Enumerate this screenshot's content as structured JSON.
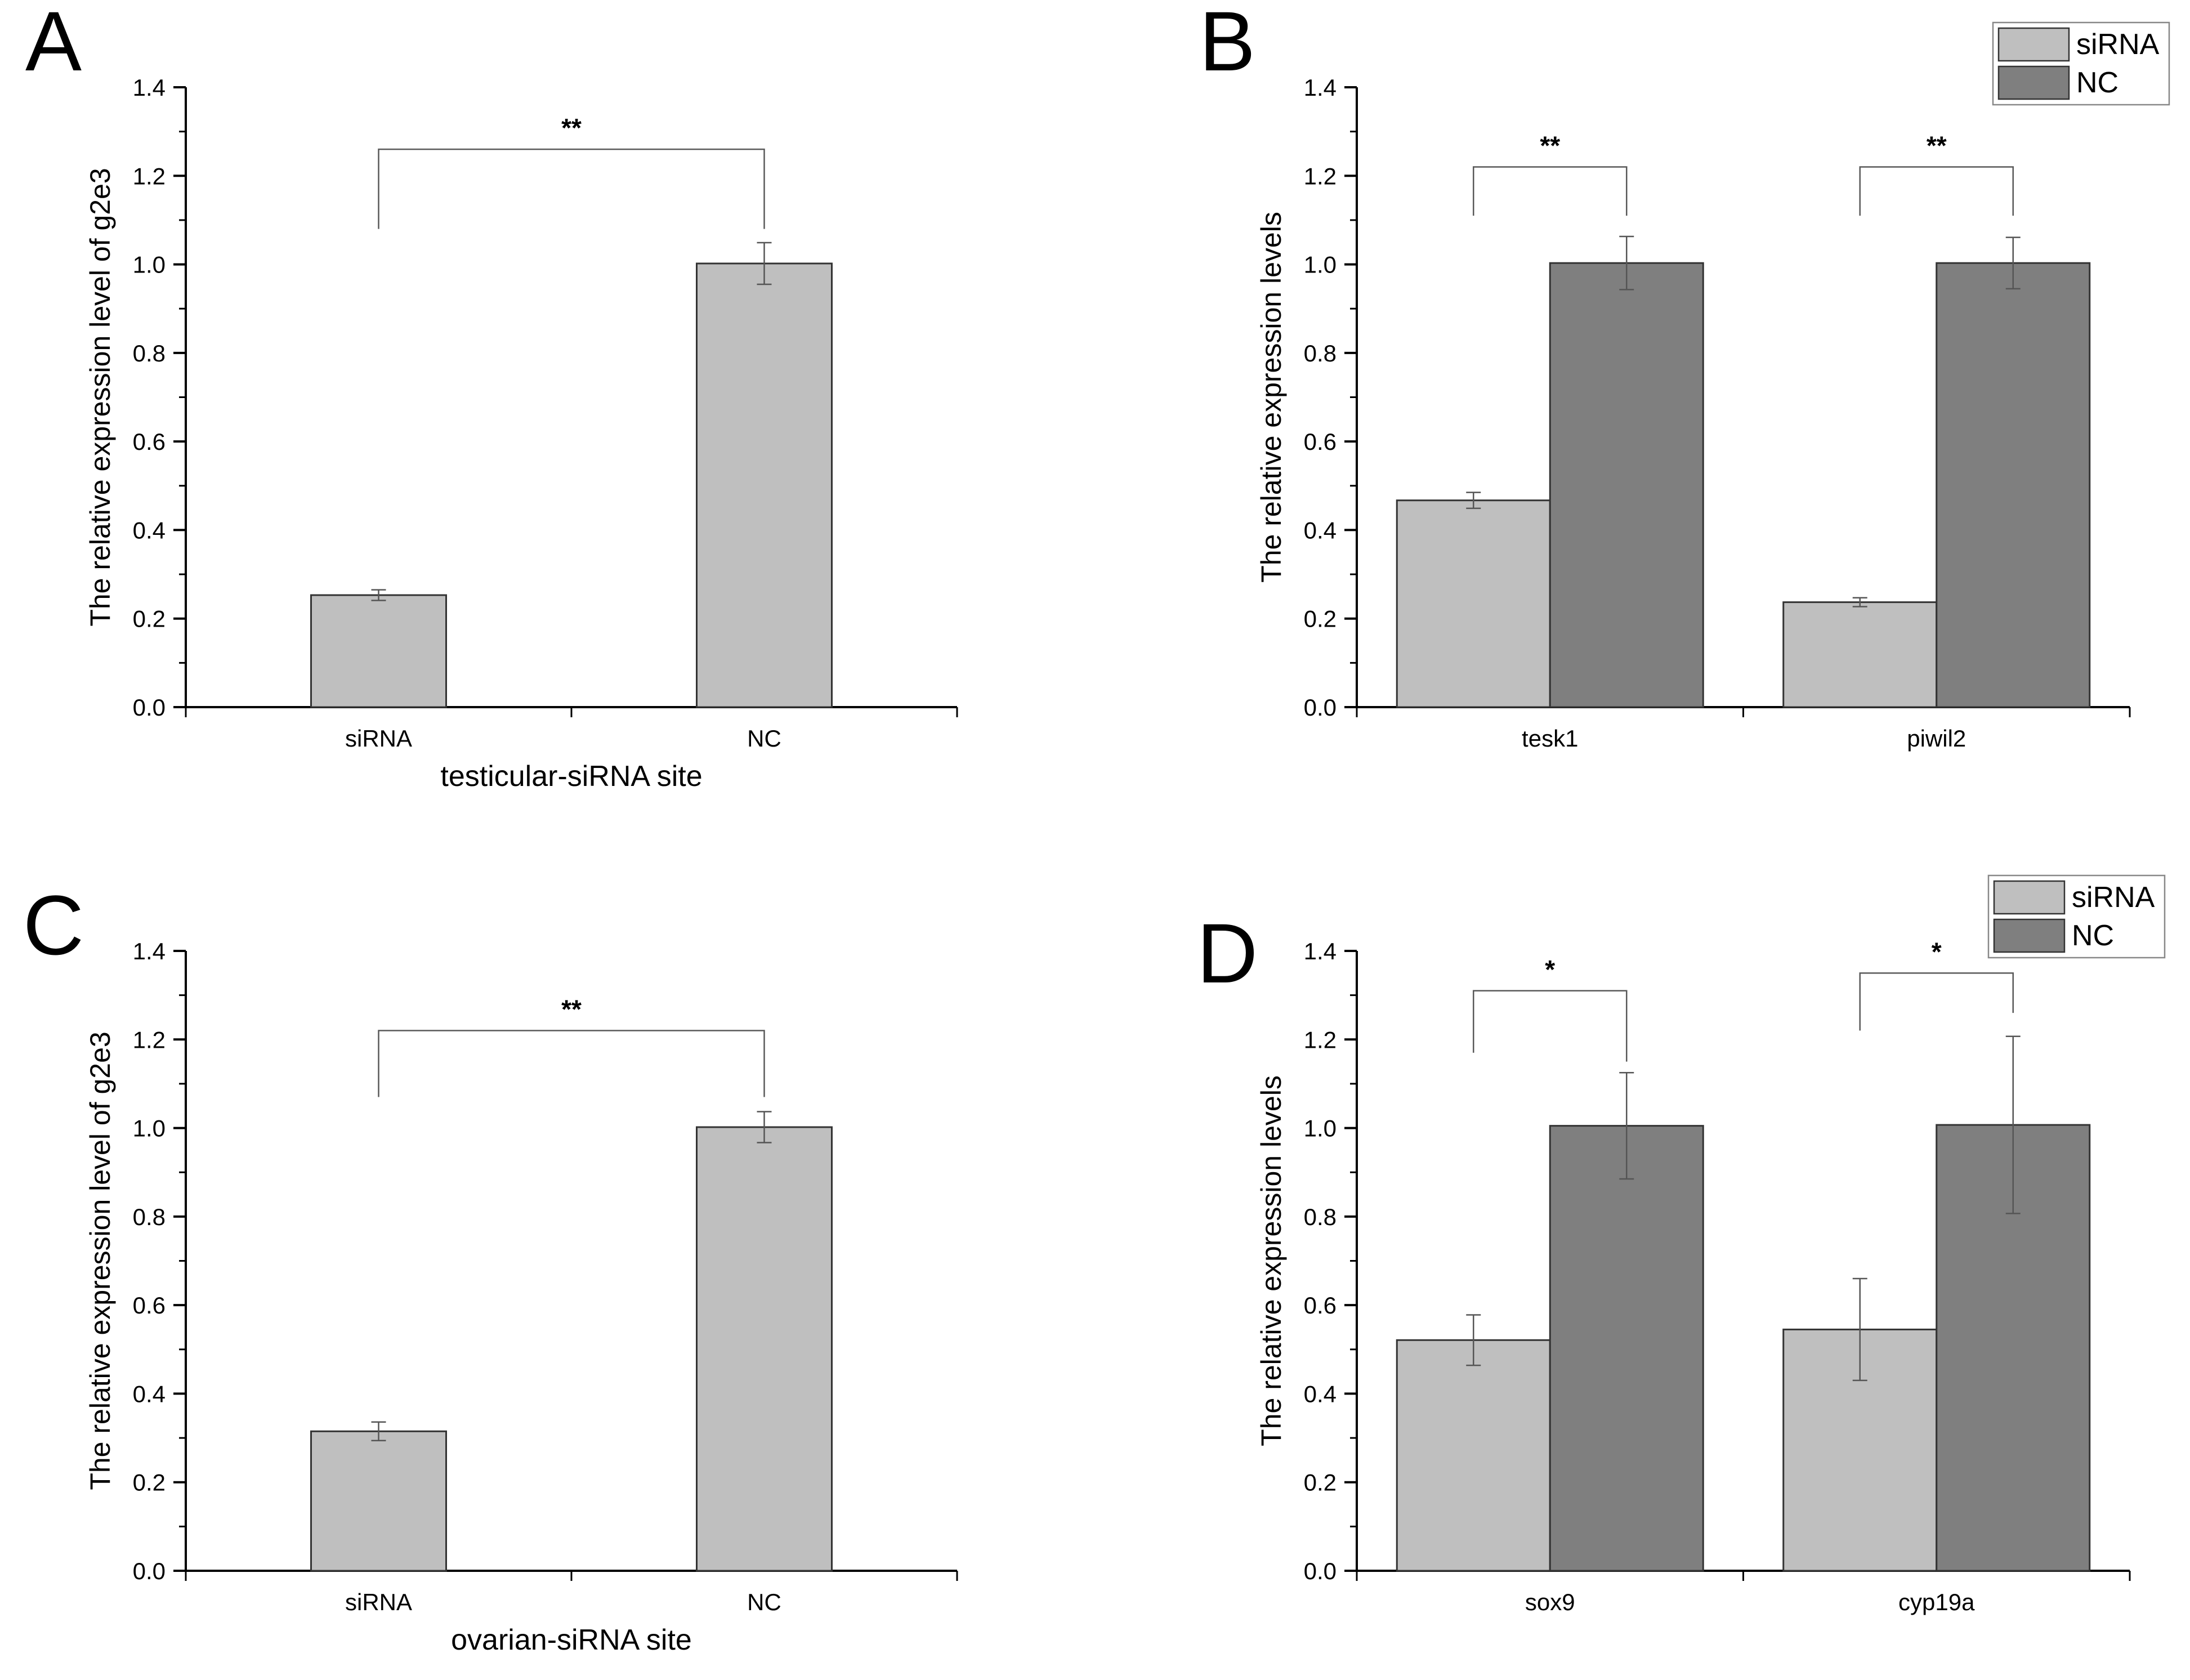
{
  "figure": {
    "panel_labels": [
      "A",
      "B",
      "C",
      "D"
    ]
  },
  "colors": {
    "light": "#bfbfbf",
    "dark": "#7f7f7f",
    "axis": "#000000",
    "bracket": "#595959"
  },
  "chart_data": [
    {
      "panel": "A",
      "type": "bar",
      "title": "",
      "categories": [
        "siRNA",
        "NC"
      ],
      "values": [
        0.253,
        1.002
      ],
      "errors": [
        0.012,
        0.047
      ],
      "xlabel": "testicular-siRNA site",
      "ylabel": "The relative expression level of g2e3",
      "ylim": [
        0,
        1.4
      ],
      "yticks": [
        "0.0",
        "0.2",
        "0.4",
        "0.6",
        "0.8",
        "1.0",
        "1.2",
        "1.4"
      ],
      "grid": false,
      "annotations": [
        {
          "text": "**",
          "between": [
            "siRNA",
            "NC"
          ],
          "level": 1.26,
          "left_end": 1.08,
          "right_end": 1.08
        }
      ]
    },
    {
      "panel": "B",
      "type": "bar",
      "title": "",
      "categories": [
        "tesk1",
        "piwil2"
      ],
      "series": [
        {
          "name": "siRNA",
          "values": [
            0.467,
            0.237
          ],
          "errors": [
            0.018,
            0.01
          ]
        },
        {
          "name": "NC",
          "values": [
            1.003,
            1.003
          ],
          "errors": [
            0.06,
            0.058
          ]
        }
      ],
      "xlabel": "",
      "ylabel": "The relative expression levels",
      "ylim": [
        0,
        1.4
      ],
      "yticks": [
        "0.0",
        "0.2",
        "0.4",
        "0.6",
        "0.8",
        "1.0",
        "1.2",
        "1.4"
      ],
      "grid": false,
      "legend": {
        "placement": "top-right"
      },
      "annotations": [
        {
          "text": "**",
          "category": "tesk1",
          "level": 1.22,
          "left_end": 1.11,
          "right_end": 1.11
        },
        {
          "text": "**",
          "category": "piwil2",
          "level": 1.22,
          "left_end": 1.11,
          "right_end": 1.11
        }
      ]
    },
    {
      "panel": "C",
      "type": "bar",
      "title": "",
      "categories": [
        "siRNA",
        "NC"
      ],
      "values": [
        0.315,
        1.002
      ],
      "errors": [
        0.021,
        0.035
      ],
      "xlabel": "ovarian-siRNA site",
      "ylabel": "The relative expression level of g2e3",
      "ylim": [
        0,
        1.4
      ],
      "yticks": [
        "0.0",
        "0.2",
        "0.4",
        "0.6",
        "0.8",
        "1.0",
        "1.2",
        "1.4"
      ],
      "grid": false,
      "annotations": [
        {
          "text": "**",
          "between": [
            "siRNA",
            "NC"
          ],
          "level": 1.22,
          "left_end": 1.07,
          "right_end": 1.07
        }
      ]
    },
    {
      "panel": "D",
      "type": "bar",
      "title": "",
      "categories": [
        "sox9",
        "cyp19a"
      ],
      "series": [
        {
          "name": "siRNA",
          "values": [
            0.521,
            0.545
          ],
          "errors": [
            0.057,
            0.115
          ]
        },
        {
          "name": "NC",
          "values": [
            1.005,
            1.007
          ],
          "errors": [
            0.12,
            0.2
          ]
        }
      ],
      "xlabel": "",
      "ylabel": "The relative expression levels",
      "ylim": [
        0,
        1.4
      ],
      "yticks": [
        "0.0",
        "0.2",
        "0.4",
        "0.6",
        "0.8",
        "1.0",
        "1.2",
        "1.4"
      ],
      "grid": false,
      "legend": {
        "placement": "top-right"
      },
      "annotations": [
        {
          "text": "*",
          "category": "sox9",
          "level": 1.31,
          "left_end": 1.17,
          "right_end": 1.15
        },
        {
          "text": "*",
          "category": "cyp19a",
          "level": 1.35,
          "left_end": 1.22,
          "right_end": 1.26
        }
      ]
    }
  ]
}
